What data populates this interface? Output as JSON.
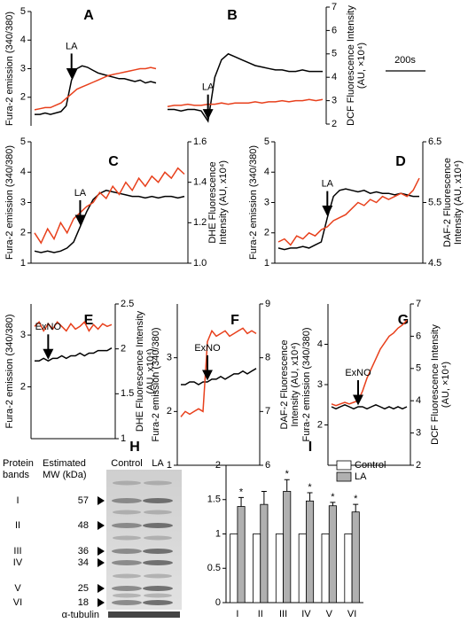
{
  "chart_data": [
    {
      "type": "line",
      "title": "A",
      "ylabel": "Fura-2 emission (340/380)",
      "ylim": [
        1,
        5
      ],
      "yticks": [
        2,
        3,
        4,
        5
      ],
      "y2lim": [
        2,
        7
      ],
      "annotation": "LA",
      "series": [
        {
          "name": "Fura-2",
          "color": "#000000",
          "axis": "y",
          "values": [
            1.4,
            1.4,
            1.45,
            1.4,
            1.45,
            1.5,
            1.7,
            2.6,
            3.0,
            3.1,
            3.05,
            2.95,
            2.85,
            2.8,
            2.75,
            2.7,
            2.65,
            2.65,
            2.6,
            2.55,
            2.6,
            2.5,
            2.55,
            2.5
          ]
        },
        {
          "name": "DCF",
          "color": "#e8401c",
          "axis": "y2",
          "values": [
            2.7,
            2.75,
            2.8,
            2.8,
            2.9,
            3.0,
            3.2,
            3.4,
            3.6,
            3.7,
            3.8,
            3.9,
            4.0,
            4.1,
            4.2,
            4.25,
            4.3,
            4.35,
            4.4,
            4.45,
            4.5,
            4.5,
            4.55,
            4.5
          ]
        }
      ]
    },
    {
      "type": "line",
      "title": "B",
      "y2label": [
        "DCF Fluorescence Intensity",
        "(AU, ×10⁴)"
      ],
      "ylim": [
        1,
        5
      ],
      "y2lim": [
        2,
        7
      ],
      "y2ticks": [
        2,
        3,
        4,
        5,
        6,
        7
      ],
      "annotation": "LA",
      "scale_bar": "200s",
      "series": [
        {
          "name": "Fura-2",
          "color": "#000000",
          "axis": "y",
          "values": [
            1.5,
            1.5,
            1.45,
            1.5,
            1.5,
            1.45,
            1.1,
            2.6,
            3.2,
            3.4,
            3.3,
            3.2,
            3.1,
            3.0,
            2.95,
            2.9,
            2.85,
            2.85,
            2.8,
            2.8,
            2.85,
            2.8,
            2.8,
            2.8
          ]
        },
        {
          "name": "DCF",
          "color": "#e8401c",
          "axis": "y2",
          "values": [
            2.75,
            2.8,
            2.8,
            2.85,
            2.8,
            2.8,
            2.85,
            2.85,
            2.9,
            2.85,
            2.9,
            2.9,
            2.9,
            2.95,
            2.9,
            2.95,
            2.95,
            3.0,
            2.95,
            3.0,
            3.0,
            3.05,
            3.0,
            3.05
          ]
        }
      ]
    },
    {
      "type": "line",
      "title": "C",
      "ylabel": "Fura-2 emission (340/380)",
      "y2label": [
        "DHE Fluorescence",
        "Intensity (AU, x10⁴)"
      ],
      "ylim": [
        1,
        5
      ],
      "yticks": [
        1,
        2,
        3,
        4,
        5
      ],
      "y2lim": [
        1.0,
        1.6
      ],
      "y2ticks": [
        {
          "value": 1,
          "label": "1.0"
        },
        1.2,
        1.4,
        1.6
      ],
      "annotation": "LA",
      "series": [
        {
          "name": "Fura-2",
          "color": "#000000",
          "axis": "y",
          "values": [
            1.4,
            1.35,
            1.4,
            1.35,
            1.4,
            1.5,
            1.7,
            2.2,
            2.7,
            3.1,
            3.3,
            3.4,
            3.35,
            3.3,
            3.25,
            3.2,
            3.2,
            3.15,
            3.2,
            3.15,
            3.2,
            3.2,
            3.15,
            3.2
          ]
        },
        {
          "name": "DHE",
          "color": "#e8401c",
          "axis": "y2",
          "values": [
            1.15,
            1.1,
            1.17,
            1.12,
            1.2,
            1.15,
            1.22,
            1.25,
            1.28,
            1.3,
            1.35,
            1.32,
            1.38,
            1.34,
            1.4,
            1.36,
            1.42,
            1.38,
            1.43,
            1.4,
            1.45,
            1.42,
            1.47,
            1.44
          ]
        }
      ]
    },
    {
      "type": "line",
      "title": "D",
      "ylabel": "Fura-2 emission (340/380)",
      "y2label": [
        "DAF-2 Fluorescence",
        "Intensity (AU, x10⁴)"
      ],
      "ylim": [
        1,
        5
      ],
      "yticks": [
        1,
        2,
        3,
        4,
        5
      ],
      "y2lim": [
        4.5,
        6.5
      ],
      "y2ticks": [
        4.5,
        5.5,
        6.5
      ],
      "annotation": "LA",
      "series": [
        {
          "name": "Fura-2",
          "color": "#000000",
          "axis": "y",
          "values": [
            1.5,
            1.45,
            1.5,
            1.5,
            1.55,
            1.5,
            1.6,
            1.7,
            2.5,
            3.2,
            3.4,
            3.45,
            3.4,
            3.35,
            3.4,
            3.3,
            3.35,
            3.3,
            3.3,
            3.25,
            3.3,
            3.25,
            3.2,
            3.2
          ]
        },
        {
          "name": "DAF-2",
          "color": "#e8401c",
          "axis": "y2",
          "values": [
            4.85,
            4.9,
            4.8,
            4.95,
            4.9,
            5.0,
            4.95,
            5.05,
            5.1,
            5.2,
            5.25,
            5.3,
            5.4,
            5.5,
            5.45,
            5.55,
            5.5,
            5.6,
            5.55,
            5.6,
            5.65,
            5.6,
            5.7,
            5.9
          ]
        }
      ]
    },
    {
      "type": "line",
      "title": "E",
      "ylabel": "Fura-2 emission (340/380)",
      "y2label": [
        "DHE Fluorescence Intensity",
        "(AU, x10⁴)"
      ],
      "ylim": [
        1,
        3.6
      ],
      "yticks": [
        2,
        3
      ],
      "y2lim": [
        1,
        2.5
      ],
      "y2ticks": [
        1,
        1.5,
        2,
        2.5
      ],
      "annotation": "ExNO",
      "series": [
        {
          "name": "Fura-2",
          "color": "#000000",
          "axis": "y",
          "values": [
            2.5,
            2.5,
            2.55,
            2.5,
            2.55,
            2.55,
            2.6,
            2.55,
            2.6,
            2.6,
            2.65,
            2.6,
            2.65,
            2.65,
            2.7,
            2.7,
            2.7,
            2.75
          ]
        },
        {
          "name": "DHE",
          "color": "#e8401c",
          "axis": "y2",
          "values": [
            2.25,
            2.3,
            2.2,
            2.28,
            2.22,
            2.3,
            2.25,
            2.2,
            2.28,
            2.22,
            2.25,
            2.3,
            2.2,
            2.27,
            2.22,
            2.28,
            2.25,
            2.27
          ]
        }
      ]
    },
    {
      "type": "line",
      "title": "F",
      "ylabel": "Fura-2 emission (340/380)",
      "y2label": [
        "DAF-2 Fluorescence",
        "Intensity (AU, x10⁴)"
      ],
      "ylim": [
        1,
        4
      ],
      "yticks": [
        1,
        2,
        3
      ],
      "y2lim": [
        6,
        9
      ],
      "y2ticks": [
        6,
        7,
        8,
        9
      ],
      "annotation": "ExNO",
      "series": [
        {
          "name": "Fura-2",
          "color": "#000000",
          "axis": "y",
          "values": [
            2.5,
            2.5,
            2.55,
            2.55,
            2.5,
            2.55,
            2.55,
            2.6,
            2.6,
            2.65,
            2.6,
            2.65,
            2.7,
            2.7,
            2.75,
            2.7,
            2.75,
            2.8
          ]
        },
        {
          "name": "DAF-2",
          "color": "#e8401c",
          "axis": "y2",
          "values": [
            6.9,
            7.0,
            6.95,
            7.0,
            7.05,
            7.0,
            8.3,
            8.5,
            8.4,
            8.45,
            8.5,
            8.4,
            8.45,
            8.5,
            8.55,
            8.45,
            8.5,
            8.45
          ]
        }
      ]
    },
    {
      "type": "line",
      "title": "G",
      "ylabel": "Fura-2 emission (340/380)",
      "y2label": [
        "DCF Fluorescence Intensity",
        "(AU, ×10⁴)"
      ],
      "ylim": [
        1,
        5
      ],
      "yticks": [
        2,
        3,
        4
      ],
      "y2lim": [
        2,
        7
      ],
      "y2ticks": [
        2,
        3,
        4,
        5,
        6,
        7
      ],
      "annotation": "ExNO",
      "series": [
        {
          "name": "Fura-2",
          "color": "#000000",
          "axis": "y",
          "values": [
            2.45,
            2.4,
            2.45,
            2.5,
            2.45,
            2.4,
            2.45,
            2.45,
            2.4,
            2.45,
            2.5,
            2.45,
            2.4,
            2.45,
            2.4,
            2.45,
            2.4,
            2.45
          ]
        },
        {
          "name": "DCF",
          "color": "#e8401c",
          "axis": "y2",
          "values": [
            3.9,
            3.85,
            3.9,
            3.95,
            3.9,
            3.95,
            4.0,
            4.3,
            4.7,
            5.0,
            5.3,
            5.6,
            5.8,
            6.0,
            6.1,
            6.25,
            6.35,
            6.5
          ]
        }
      ]
    },
    {
      "type": "bar",
      "title": "I",
      "categories": [
        "I",
        "II",
        "III",
        "IV",
        "V",
        "VI"
      ],
      "ylim": [
        0,
        2
      ],
      "yticks": [
        0,
        0.5,
        1,
        1.5,
        2
      ],
      "series": [
        {
          "name": "Control",
          "color": "#ffffff",
          "values": [
            1,
            1,
            1,
            1,
            1,
            1
          ]
        },
        {
          "name": "LA",
          "color": "#b0b0b0",
          "values": [
            1.4,
            1.43,
            1.62,
            1.48,
            1.41,
            1.32
          ],
          "errors": [
            0.13,
            0.19,
            0.17,
            0.12,
            0.05,
            0.11
          ],
          "significance": [
            "*",
            null,
            "*",
            "*",
            "*",
            "*"
          ]
        }
      ]
    }
  ],
  "blot": {
    "title": "H",
    "headers": [
      [
        "Protein",
        "bands"
      ],
      [
        "Estimated",
        "MW (kDa)"
      ]
    ],
    "lanes": [
      "Control",
      "LA"
    ],
    "bands": [
      {
        "label": "I",
        "mw": 57
      },
      {
        "label": "II",
        "mw": 48
      },
      {
        "label": "III",
        "mw": 36
      },
      {
        "label": "IV",
        "mw": 34
      },
      {
        "label": "V",
        "mw": 25
      },
      {
        "label": "VI",
        "mw": 18
      }
    ],
    "loading_control": "α-tubulin"
  }
}
